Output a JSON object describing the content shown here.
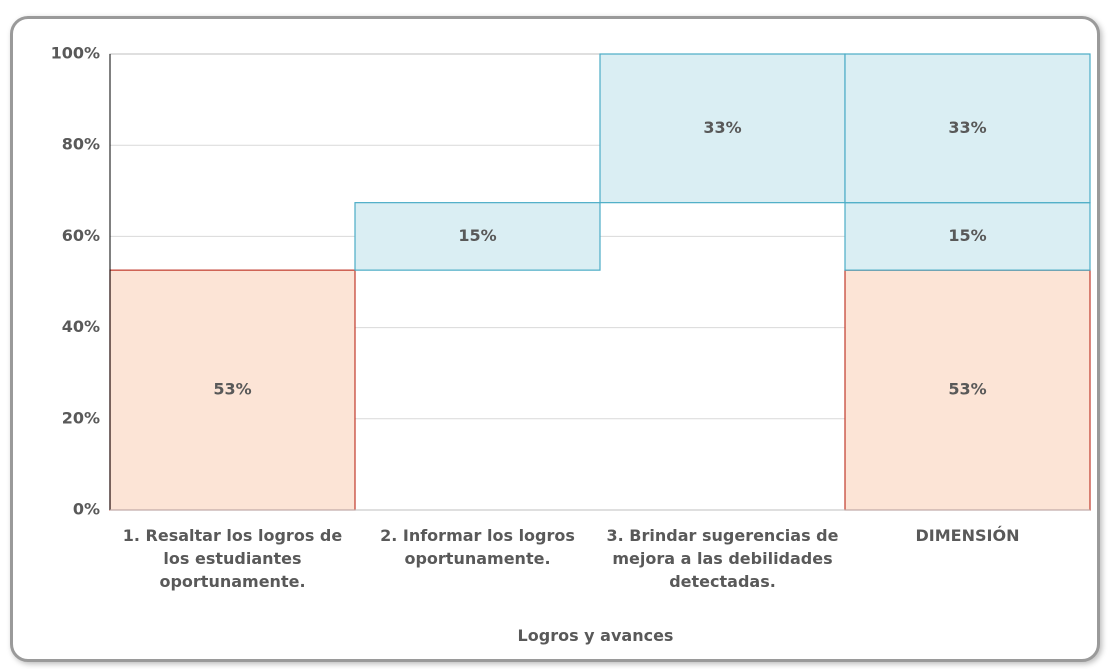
{
  "chart_data": {
    "type": "waterfall",
    "xlabel": "Logros y avances",
    "categories": [
      "1. Resaltar los logros de los estudiantes oportunamente.",
      "2. Informar los logros oportunamente.",
      "3. Brindar sugerencias de mejora a las debilidades detectadas."
    ],
    "total_label": "DIMENSIÓN",
    "values": [
      52.6,
      14.8,
      32.6
    ],
    "value_labels": [
      "53%",
      "15%",
      "33%"
    ],
    "colors": [
      "#fce4d6",
      "#daeef3",
      "#daeef3"
    ],
    "edge_colors": [
      "#c0392b",
      "#4bacc6",
      "#4bacc6"
    ],
    "ylim": [
      0,
      100
    ],
    "yticks": [
      {
        "value": 0,
        "label": "0%"
      },
      {
        "value": 20,
        "label": "20%"
      },
      {
        "value": 40,
        "label": "40%"
      },
      {
        "value": 60,
        "label": "60%"
      },
      {
        "value": 80,
        "label": "80%"
      },
      {
        "value": 100,
        "label": "100%"
      }
    ],
    "grid": true
  }
}
